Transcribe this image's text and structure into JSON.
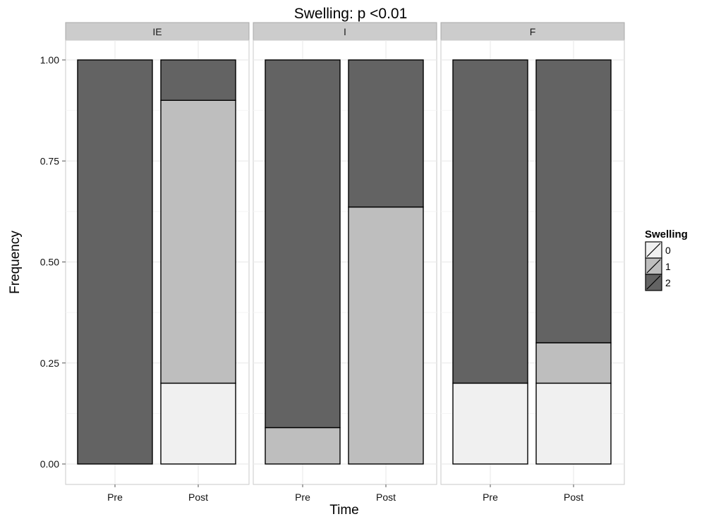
{
  "chart_data": {
    "type": "bar",
    "stacked": true,
    "title": "Swelling: p <0.01",
    "xlabel": "Time",
    "ylabel": "Frequency",
    "ylim": [
      0,
      1
    ],
    "yticks": [
      "0.00",
      "0.25",
      "0.50",
      "0.75",
      "1.00"
    ],
    "categories": [
      "Pre",
      "Post"
    ],
    "grid": true,
    "legend": {
      "title": "Swelling",
      "position": "right",
      "entries": [
        "0",
        "1",
        "2"
      ]
    },
    "colors": {
      "0": "#f0f0f0",
      "1": "#bebebe",
      "2": "#636363",
      "panel_bg": "#ffffff",
      "strip_bg": "#cccccc",
      "grid": "#ebebeb"
    },
    "panels": [
      {
        "name": "IE",
        "series": [
          {
            "name": "0",
            "values": [
              0.0,
              0.2
            ]
          },
          {
            "name": "1",
            "values": [
              0.0,
              0.7
            ]
          },
          {
            "name": "2",
            "values": [
              1.0,
              0.1
            ]
          }
        ]
      },
      {
        "name": "I",
        "series": [
          {
            "name": "0",
            "values": [
              0.0,
              0.0
            ]
          },
          {
            "name": "1",
            "values": [
              0.09,
              0.636
            ]
          },
          {
            "name": "2",
            "values": [
              0.91,
              0.364
            ]
          }
        ]
      },
      {
        "name": "F",
        "series": [
          {
            "name": "0",
            "values": [
              0.2,
              0.2
            ]
          },
          {
            "name": "1",
            "values": [
              0.0,
              0.1
            ]
          },
          {
            "name": "2",
            "values": [
              0.8,
              0.7
            ]
          }
        ]
      }
    ]
  }
}
